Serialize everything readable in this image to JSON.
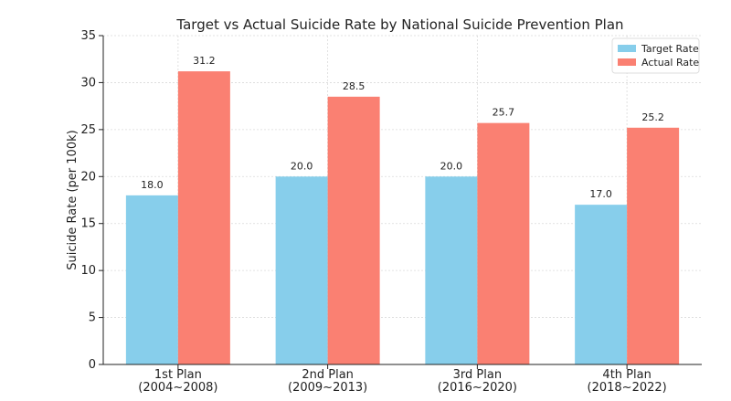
{
  "chart_data": {
    "type": "bar",
    "title": "Target vs Actual Suicide Rate by National Suicide Prevention Plan",
    "xlabel": "",
    "ylabel": "Suicide Rate (per 100k)",
    "categories": [
      [
        "1st Plan",
        "(2004~2008)"
      ],
      [
        "2nd Plan",
        "(2009~2013)"
      ],
      [
        "3rd Plan",
        "(2016~2020)"
      ],
      [
        "4th Plan",
        "(2018~2022)"
      ]
    ],
    "series": [
      {
        "name": "Target Rate",
        "values": [
          18.0,
          20.0,
          20.0,
          17.0
        ],
        "labels": [
          "18.0",
          "20.0",
          "20.0",
          "17.0"
        ],
        "color": "#87ceeb"
      },
      {
        "name": "Actual Rate",
        "values": [
          31.2,
          28.5,
          25.7,
          25.2
        ],
        "labels": [
          "31.2",
          "28.5",
          "25.7",
          "25.2"
        ],
        "color": "#fa8072"
      }
    ],
    "ylim": [
      0,
      35
    ],
    "yticks": [
      "0",
      "5",
      "10",
      "15",
      "20",
      "25",
      "30",
      "35"
    ],
    "grid": true,
    "legend_position": "top-right"
  }
}
